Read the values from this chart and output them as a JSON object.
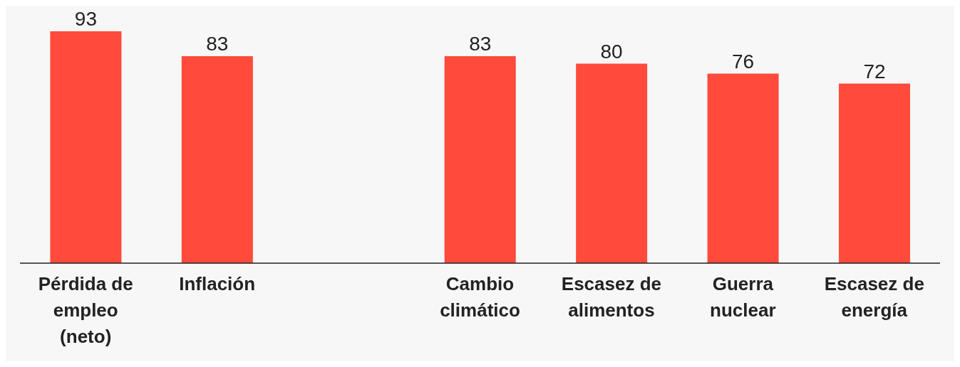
{
  "chart_data": {
    "type": "bar",
    "categories": [
      "Pérdida de empleo (neto)",
      "Inflación",
      null,
      "Cambio climático",
      "Escasez de alimentos",
      "Guerra nuclear",
      "Escasez de energía"
    ],
    "values": [
      93,
      83,
      null,
      83,
      80,
      76,
      72
    ],
    "color": "#ff4a3c",
    "data_labels": true
  }
}
